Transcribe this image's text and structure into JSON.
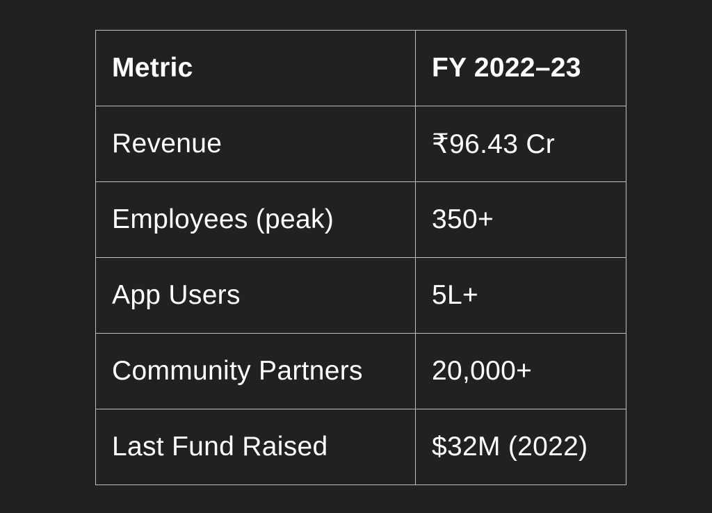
{
  "table": {
    "headers": [
      "Metric",
      "FY 2022–23"
    ],
    "rows": [
      [
        "Revenue",
        "₹96.43 Cr"
      ],
      [
        "Employees (peak)",
        "350+"
      ],
      [
        "App Users",
        "5L+"
      ],
      [
        "Community Partners",
        "20,000+"
      ],
      [
        "Last Fund Raised",
        "$32M (2022)"
      ]
    ]
  },
  "colors": {
    "background": "#212121",
    "text": "#ffffff",
    "border": "#bfbfbf"
  }
}
